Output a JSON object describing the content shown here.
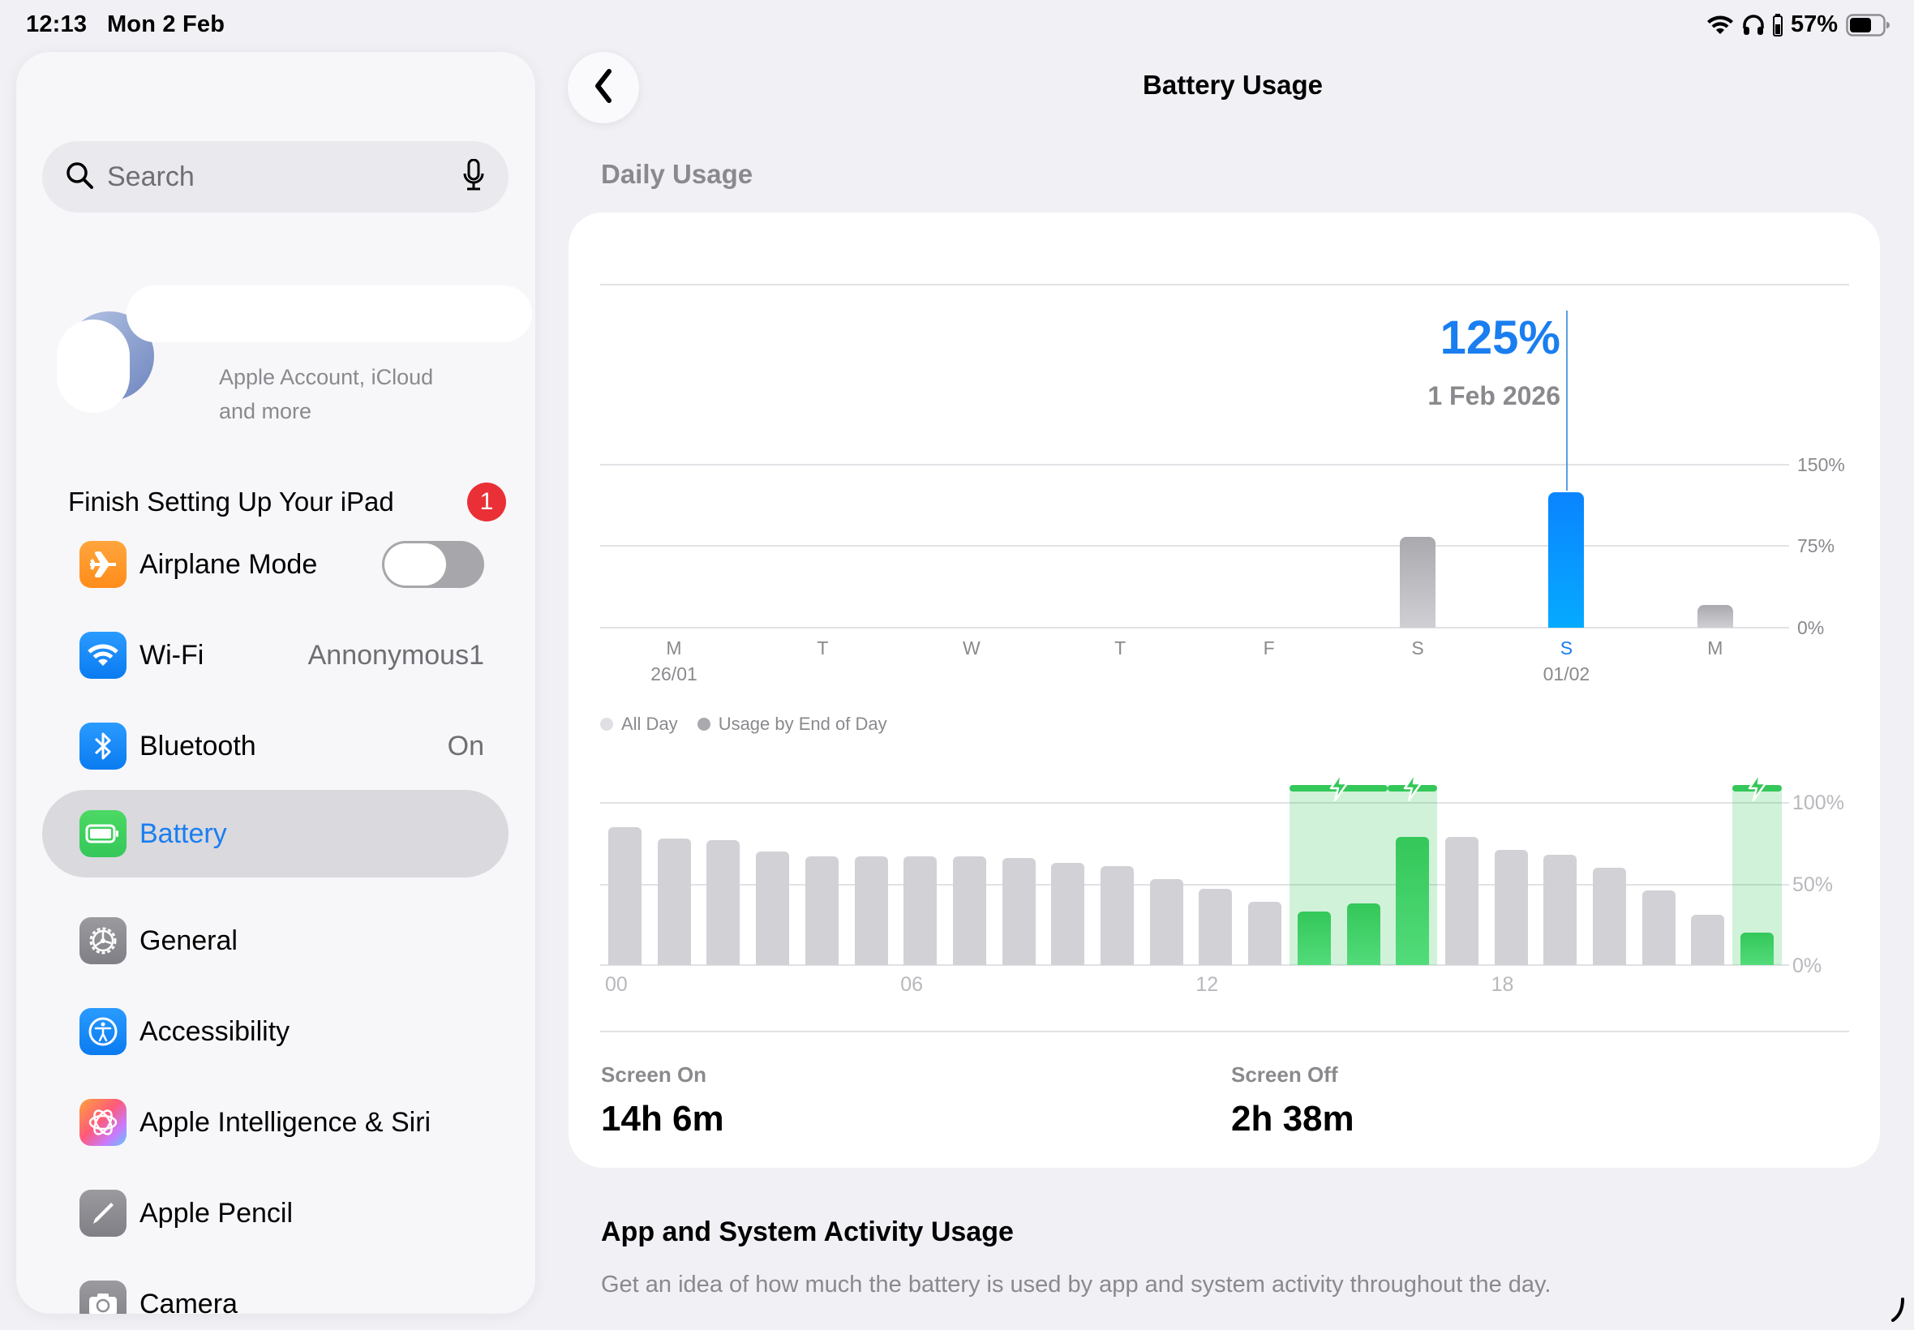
{
  "status_bar": {
    "time": "12:13",
    "date": "Mon 2 Feb",
    "battery_percent": "57%",
    "icons": [
      "wifi-icon",
      "headphones-icon",
      "headphone-battery-icon",
      "battery-icon"
    ]
  },
  "sidebar": {
    "search": {
      "placeholder": "Search",
      "icon": "search-icon",
      "mic_icon": "microphone-icon"
    },
    "account": {
      "subtitle_line1": "Apple Account, iCloud",
      "subtitle_line2": "and more"
    },
    "finish_setup": {
      "label": "Finish Setting Up Your iPad",
      "badge": "1"
    },
    "items": [
      {
        "label": "Airplane Mode",
        "icon": "airplane-icon",
        "color": "#ff9a2e",
        "toggle": false
      },
      {
        "label": "Wi-Fi",
        "icon": "wifi-icon",
        "color": "#1a8cff",
        "value": "Annonymous1"
      },
      {
        "label": "Bluetooth",
        "icon": "bluetooth-icon",
        "color": "#1a8cff",
        "value": "On"
      },
      {
        "label": "Battery",
        "icon": "battery-icon",
        "color": "#34c759",
        "selected": true
      },
      {
        "label": "General",
        "icon": "gear-icon",
        "color": "#8e8e93"
      },
      {
        "label": "Accessibility",
        "icon": "accessibility-icon",
        "color": "#1a8cff"
      },
      {
        "label": "Apple Intelligence & Siri",
        "icon": "apple-intelligence-icon",
        "color": "#ff7a59"
      },
      {
        "label": "Apple Pencil",
        "icon": "pencil-icon",
        "color": "#8e8e93"
      },
      {
        "label": "Camera",
        "icon": "camera-icon",
        "color": "#8e8e93"
      }
    ]
  },
  "main": {
    "title": "Battery Usage",
    "back_icon": "chevron-left-icon",
    "daily_section_label": "Daily Usage",
    "callout": {
      "value": "125%",
      "date": "1 Feb 2026"
    },
    "legend": [
      {
        "label": "All Day",
        "color": "#e0e0e4"
      },
      {
        "label": "Usage by End of Day",
        "color": "#a9a9ae"
      }
    ],
    "stats": {
      "screen_on_label": "Screen On",
      "screen_on_value": "14h 6m",
      "screen_off_label": "Screen Off",
      "screen_off_value": "2h 38m"
    },
    "activity_section": {
      "title": "App and System Activity Usage",
      "description": "Get an idea of how much the battery is used by app and system activity throughout the day."
    }
  },
  "chart_data": [
    {
      "type": "bar",
      "title": "Daily Usage",
      "categories": [
        "M",
        "T",
        "W",
        "T",
        "F",
        "S",
        "S",
        "M"
      ],
      "date_labels": [
        "26/01",
        "",
        "",
        "",
        "",
        "",
        "01/02",
        ""
      ],
      "values": [
        0,
        0,
        0,
        0,
        0,
        84,
        125,
        21
      ],
      "selected_index": 6,
      "selected_label": "125%",
      "selected_date": "1 Feb 2026",
      "yticks": [
        "0%",
        "75%",
        "150%"
      ],
      "ylim": [
        0,
        150
      ],
      "grid": true,
      "colors": {
        "default": "#b9b9be",
        "selected": "#0a8cff"
      }
    },
    {
      "type": "bar",
      "title": "Hourly Battery Level",
      "x": [
        "00",
        "01",
        "02",
        "03",
        "04",
        "05",
        "06",
        "07",
        "08",
        "09",
        "10",
        "11",
        "12",
        "13",
        "14",
        "15",
        "16",
        "17",
        "18",
        "19",
        "20",
        "21",
        "22",
        "23"
      ],
      "xtick_labels": [
        "00",
        "06",
        "12",
        "18"
      ],
      "values": [
        85,
        78,
        77,
        70,
        67,
        67,
        67,
        67,
        66,
        63,
        61,
        53,
        47,
        39,
        33,
        38,
        79,
        79,
        71,
        68,
        60,
        46,
        31,
        20
      ],
      "charging_hours": [
        14,
        15,
        16,
        23
      ],
      "charging_bands": [
        [
          14,
          15
        ],
        [
          16,
          16
        ],
        [
          23,
          23
        ]
      ],
      "yticks": [
        "0%",
        "50%",
        "100%"
      ],
      "ylim": [
        0,
        100
      ],
      "grid": true,
      "colors": {
        "default": "#d1d1d6",
        "charging": "#34c759"
      }
    }
  ]
}
